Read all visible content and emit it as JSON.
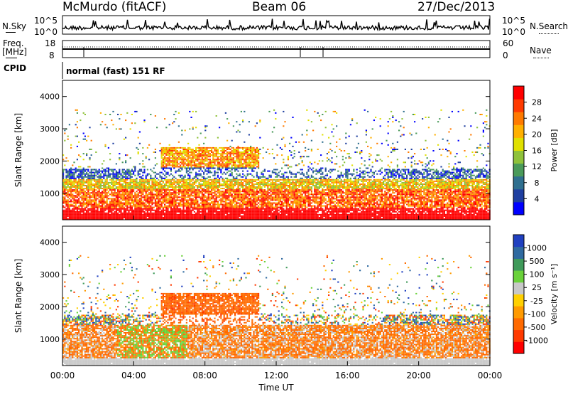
{
  "header": {
    "station": "McMurdo (fitACF)",
    "beam": "Beam 06",
    "date": "27/Dec/2013"
  },
  "noise_panel": {
    "left_label": "N.Sky",
    "right_label": "N.Search",
    "left_ticks": [
      "10^5",
      "10^0"
    ],
    "right_ticks": [
      "10^5",
      "10^0"
    ]
  },
  "freq_panel": {
    "left_label_1": "Freq.",
    "left_label_2": "[MHz]",
    "right_label": "Nave",
    "left_ticks": [
      "18",
      "8"
    ],
    "right_ticks": [
      "60",
      "0"
    ]
  },
  "cpid": {
    "label": "CPID",
    "value": "normal (fast) 151 RF"
  },
  "colors": {
    "power_scale": [
      "#0000ff",
      "#1f3fa0",
      "#2f6f8f",
      "#4a9a5a",
      "#8fc23a",
      "#e0e000",
      "#ffb000",
      "#ff7a00",
      "#ff3a00",
      "#ff0000"
    ],
    "velocity_scale": [
      "#2040c0",
      "#2f6aa0",
      "#3f9a5a",
      "#6ad23a",
      "#c8c8c8",
      "#ffd000",
      "#ff9a00",
      "#ff6a00",
      "#ff3a00",
      "#ff0000"
    ]
  },
  "chart_data": [
    {
      "type": "heatmap",
      "panel": "power",
      "ylabel": "Slant Range [km]",
      "xlabel": "",
      "ylim": [
        180,
        4500
      ],
      "yticks": [
        "1000",
        "2000",
        "3000",
        "4000"
      ],
      "xlim": [
        0,
        24
      ],
      "colorbar_label": "Power [dB]",
      "colorbar_ticks": [
        "4",
        "8",
        "12",
        "16",
        "20",
        "24",
        "28"
      ],
      "colorbar_range": [
        0,
        30
      ]
    },
    {
      "type": "heatmap",
      "panel": "velocity",
      "ylabel": "Slant Range [km]",
      "xlabel": "Time UT",
      "ylim": [
        180,
        4500
      ],
      "yticks": [
        "1000",
        "2000",
        "3000",
        "4000"
      ],
      "xlim": [
        0,
        24
      ],
      "xticks": [
        "00:00",
        "04:00",
        "08:00",
        "12:00",
        "16:00",
        "20:00",
        "00:00"
      ],
      "colorbar_label": "Velocity [m s⁻¹]",
      "colorbar_ticks": [
        "1000",
        "500",
        "100",
        "25",
        "-25",
        "-100",
        "-500",
        "-1000"
      ]
    }
  ]
}
